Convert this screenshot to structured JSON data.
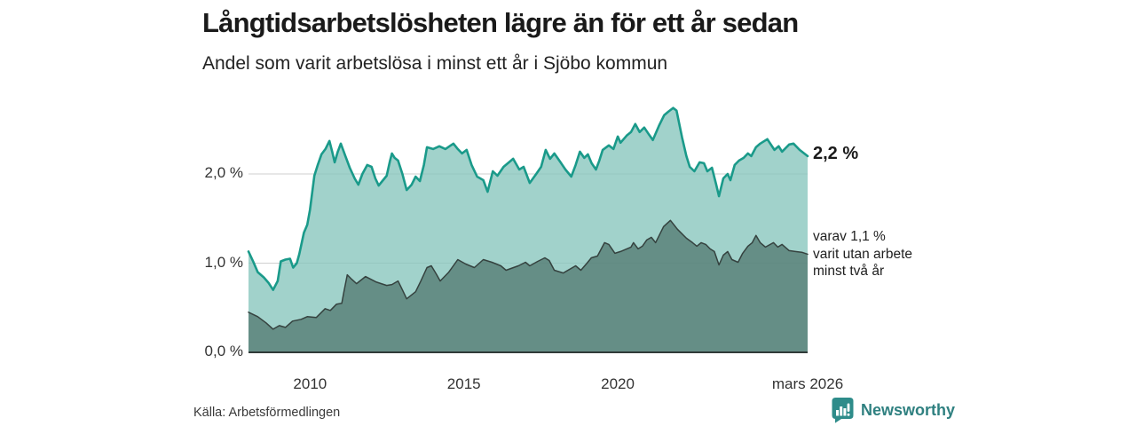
{
  "header": {
    "title": "Långtidsarbetslösheten lägre än för ett år sedan",
    "subtitle": "Andel som varit arbetslösa i minst ett år i Sjöbo kommun"
  },
  "chart_data": {
    "type": "area",
    "title": "Långtidsarbetslösheten lägre än för ett år sedan",
    "subtitle": "Andel som varit arbetslösa i minst ett år i Sjöbo kommun",
    "xlabel": "",
    "ylabel": "",
    "xlim": [
      2008.0,
      2026.17
    ],
    "ylim": [
      0,
      2.85
    ],
    "grid": true,
    "grid_color": "#cfcfcf",
    "baseline_color": "#303a38",
    "y_ticks": [
      {
        "label": "0,0 %",
        "value": 0
      },
      {
        "label": "1,0 %",
        "value": 1
      },
      {
        "label": "2,0 %",
        "value": 2
      }
    ],
    "x_ticks": [
      {
        "label": "2010",
        "year": 2010
      },
      {
        "label": "2015",
        "year": 2015
      },
      {
        "label": "2020",
        "year": 2020
      },
      {
        "label": "mars 2026",
        "year": 2026.17
      }
    ],
    "series": [
      {
        "name": "Andel arbetslösa minst ett år",
        "line_color": "#1a9a8a",
        "line_width": 2.6,
        "fill_color": "rgba(134,197,189,0.78)",
        "points": [
          [
            2008.0,
            1.13
          ],
          [
            2008.15,
            1.02
          ],
          [
            2008.3,
            0.9
          ],
          [
            2008.5,
            0.84
          ],
          [
            2008.65,
            0.78
          ],
          [
            2008.8,
            0.7
          ],
          [
            2008.95,
            0.8
          ],
          [
            2009.05,
            1.02
          ],
          [
            2009.2,
            1.04
          ],
          [
            2009.35,
            1.05
          ],
          [
            2009.45,
            0.95
          ],
          [
            2009.57,
            1.0
          ],
          [
            2009.65,
            1.1
          ],
          [
            2009.8,
            1.34
          ],
          [
            2009.91,
            1.43
          ],
          [
            2010.0,
            1.6
          ],
          [
            2010.14,
            1.98
          ],
          [
            2010.25,
            2.1
          ],
          [
            2010.37,
            2.22
          ],
          [
            2010.5,
            2.28
          ],
          [
            2010.63,
            2.37
          ],
          [
            2010.72,
            2.25
          ],
          [
            2010.8,
            2.13
          ],
          [
            2010.9,
            2.25
          ],
          [
            2011.0,
            2.34
          ],
          [
            2011.15,
            2.2
          ],
          [
            2011.29,
            2.07
          ],
          [
            2011.45,
            1.95
          ],
          [
            2011.57,
            1.88
          ],
          [
            2011.7,
            2.0
          ],
          [
            2011.86,
            2.1
          ],
          [
            2012.0,
            2.08
          ],
          [
            2012.12,
            1.95
          ],
          [
            2012.23,
            1.87
          ],
          [
            2012.35,
            1.92
          ],
          [
            2012.49,
            1.98
          ],
          [
            2012.6,
            2.15
          ],
          [
            2012.66,
            2.23
          ],
          [
            2012.75,
            2.18
          ],
          [
            2012.86,
            2.15
          ],
          [
            2013.0,
            2.0
          ],
          [
            2013.14,
            1.82
          ],
          [
            2013.3,
            1.88
          ],
          [
            2013.43,
            1.97
          ],
          [
            2013.57,
            1.92
          ],
          [
            2013.7,
            2.1
          ],
          [
            2013.8,
            2.3
          ],
          [
            2014.0,
            2.28
          ],
          [
            2014.2,
            2.31
          ],
          [
            2014.4,
            2.28
          ],
          [
            2014.66,
            2.34
          ],
          [
            2014.8,
            2.28
          ],
          [
            2014.94,
            2.23
          ],
          [
            2015.09,
            2.27
          ],
          [
            2015.25,
            2.1
          ],
          [
            2015.43,
            1.97
          ],
          [
            2015.63,
            1.93
          ],
          [
            2015.77,
            1.8
          ],
          [
            2015.94,
            2.03
          ],
          [
            2016.09,
            1.98
          ],
          [
            2016.29,
            2.08
          ],
          [
            2016.6,
            2.17
          ],
          [
            2016.8,
            2.05
          ],
          [
            2016.94,
            2.08
          ],
          [
            2017.14,
            1.9
          ],
          [
            2017.35,
            2.0
          ],
          [
            2017.51,
            2.08
          ],
          [
            2017.66,
            2.27
          ],
          [
            2017.8,
            2.17
          ],
          [
            2017.94,
            2.23
          ],
          [
            2018.14,
            2.13
          ],
          [
            2018.3,
            2.05
          ],
          [
            2018.49,
            1.97
          ],
          [
            2018.63,
            2.1
          ],
          [
            2018.77,
            2.25
          ],
          [
            2018.91,
            2.18
          ],
          [
            2019.03,
            2.22
          ],
          [
            2019.15,
            2.12
          ],
          [
            2019.29,
            2.05
          ],
          [
            2019.4,
            2.15
          ],
          [
            2019.51,
            2.27
          ],
          [
            2019.71,
            2.32
          ],
          [
            2019.86,
            2.28
          ],
          [
            2020.0,
            2.42
          ],
          [
            2020.09,
            2.35
          ],
          [
            2020.29,
            2.43
          ],
          [
            2020.43,
            2.47
          ],
          [
            2020.57,
            2.56
          ],
          [
            2020.71,
            2.47
          ],
          [
            2020.86,
            2.52
          ],
          [
            2021.0,
            2.45
          ],
          [
            2021.14,
            2.38
          ],
          [
            2021.34,
            2.54
          ],
          [
            2021.51,
            2.66
          ],
          [
            2021.65,
            2.7
          ],
          [
            2021.8,
            2.74
          ],
          [
            2021.91,
            2.71
          ],
          [
            2022.09,
            2.41
          ],
          [
            2022.23,
            2.2
          ],
          [
            2022.34,
            2.08
          ],
          [
            2022.49,
            2.03
          ],
          [
            2022.66,
            2.13
          ],
          [
            2022.8,
            2.12
          ],
          [
            2022.91,
            2.03
          ],
          [
            2023.06,
            2.07
          ],
          [
            2023.2,
            1.88
          ],
          [
            2023.29,
            1.75
          ],
          [
            2023.43,
            1.95
          ],
          [
            2023.57,
            2.0
          ],
          [
            2023.66,
            1.93
          ],
          [
            2023.8,
            2.1
          ],
          [
            2023.94,
            2.15
          ],
          [
            2024.09,
            2.18
          ],
          [
            2024.23,
            2.23
          ],
          [
            2024.34,
            2.2
          ],
          [
            2024.49,
            2.3
          ],
          [
            2024.63,
            2.34
          ],
          [
            2024.86,
            2.39
          ],
          [
            2025.09,
            2.27
          ],
          [
            2025.23,
            2.31
          ],
          [
            2025.34,
            2.25
          ],
          [
            2025.57,
            2.33
          ],
          [
            2025.71,
            2.34
          ],
          [
            2025.91,
            2.27
          ],
          [
            2026.17,
            2.2
          ]
        ]
      },
      {
        "name": "varav utan arbete minst två år",
        "line_color": "#35423f",
        "line_width": 1.5,
        "fill_color": "rgba(77,115,107,0.72)",
        "points": [
          [
            2008.0,
            0.45
          ],
          [
            2008.3,
            0.4
          ],
          [
            2008.57,
            0.33
          ],
          [
            2008.8,
            0.26
          ],
          [
            2009.0,
            0.3
          ],
          [
            2009.2,
            0.28
          ],
          [
            2009.43,
            0.35
          ],
          [
            2009.71,
            0.37
          ],
          [
            2009.91,
            0.4
          ],
          [
            2010.2,
            0.39
          ],
          [
            2010.49,
            0.49
          ],
          [
            2010.66,
            0.47
          ],
          [
            2010.86,
            0.54
          ],
          [
            2011.03,
            0.55
          ],
          [
            2011.1,
            0.68
          ],
          [
            2011.21,
            0.87
          ],
          [
            2011.35,
            0.82
          ],
          [
            2011.51,
            0.77
          ],
          [
            2011.8,
            0.85
          ],
          [
            2012.14,
            0.79
          ],
          [
            2012.49,
            0.75
          ],
          [
            2012.66,
            0.76
          ],
          [
            2012.86,
            0.8
          ],
          [
            2013.0,
            0.7
          ],
          [
            2013.14,
            0.6
          ],
          [
            2013.43,
            0.68
          ],
          [
            2013.6,
            0.8
          ],
          [
            2013.8,
            0.95
          ],
          [
            2013.94,
            0.97
          ],
          [
            2014.1,
            0.88
          ],
          [
            2014.23,
            0.8
          ],
          [
            2014.51,
            0.9
          ],
          [
            2014.8,
            1.04
          ],
          [
            2015.06,
            0.99
          ],
          [
            2015.34,
            0.95
          ],
          [
            2015.63,
            1.04
          ],
          [
            2015.91,
            1.01
          ],
          [
            2016.2,
            0.97
          ],
          [
            2016.37,
            0.92
          ],
          [
            2016.77,
            0.97
          ],
          [
            2017.0,
            1.01
          ],
          [
            2017.14,
            0.97
          ],
          [
            2017.4,
            1.02
          ],
          [
            2017.63,
            1.06
          ],
          [
            2017.77,
            1.03
          ],
          [
            2017.94,
            0.92
          ],
          [
            2018.23,
            0.89
          ],
          [
            2018.63,
            0.97
          ],
          [
            2018.8,
            0.92
          ],
          [
            2019.0,
            1.0
          ],
          [
            2019.14,
            1.06
          ],
          [
            2019.34,
            1.08
          ],
          [
            2019.57,
            1.23
          ],
          [
            2019.71,
            1.21
          ],
          [
            2019.91,
            1.11
          ],
          [
            2020.09,
            1.13
          ],
          [
            2020.43,
            1.18
          ],
          [
            2020.51,
            1.23
          ],
          [
            2020.66,
            1.16
          ],
          [
            2020.8,
            1.19
          ],
          [
            2020.94,
            1.26
          ],
          [
            2021.09,
            1.29
          ],
          [
            2021.23,
            1.23
          ],
          [
            2021.49,
            1.41
          ],
          [
            2021.71,
            1.48
          ],
          [
            2021.94,
            1.38
          ],
          [
            2022.23,
            1.28
          ],
          [
            2022.43,
            1.23
          ],
          [
            2022.57,
            1.19
          ],
          [
            2022.71,
            1.23
          ],
          [
            2022.86,
            1.21
          ],
          [
            2023.0,
            1.16
          ],
          [
            2023.14,
            1.13
          ],
          [
            2023.29,
            0.98
          ],
          [
            2023.43,
            1.09
          ],
          [
            2023.57,
            1.13
          ],
          [
            2023.71,
            1.04
          ],
          [
            2023.91,
            1.01
          ],
          [
            2024.06,
            1.11
          ],
          [
            2024.23,
            1.19
          ],
          [
            2024.37,
            1.23
          ],
          [
            2024.49,
            1.31
          ],
          [
            2024.63,
            1.23
          ],
          [
            2024.8,
            1.18
          ],
          [
            2025.06,
            1.23
          ],
          [
            2025.2,
            1.18
          ],
          [
            2025.34,
            1.21
          ],
          [
            2025.57,
            1.14
          ],
          [
            2025.77,
            1.13
          ],
          [
            2026.0,
            1.12
          ],
          [
            2026.17,
            1.1
          ]
        ]
      }
    ],
    "end_labels": {
      "total": "2,2 %",
      "annotation": "varav 1,1 %\nvarit utan arbete\nminst två år"
    },
    "legend_position": "none"
  },
  "footer": {
    "source": "Källa: Arbetsförmedlingen",
    "brand": "Newsworthy",
    "brand_color": "#2f8080",
    "brand_icon": "bar-chart-speech-bubble",
    "brand_icon_color": "#2e8c8a"
  }
}
